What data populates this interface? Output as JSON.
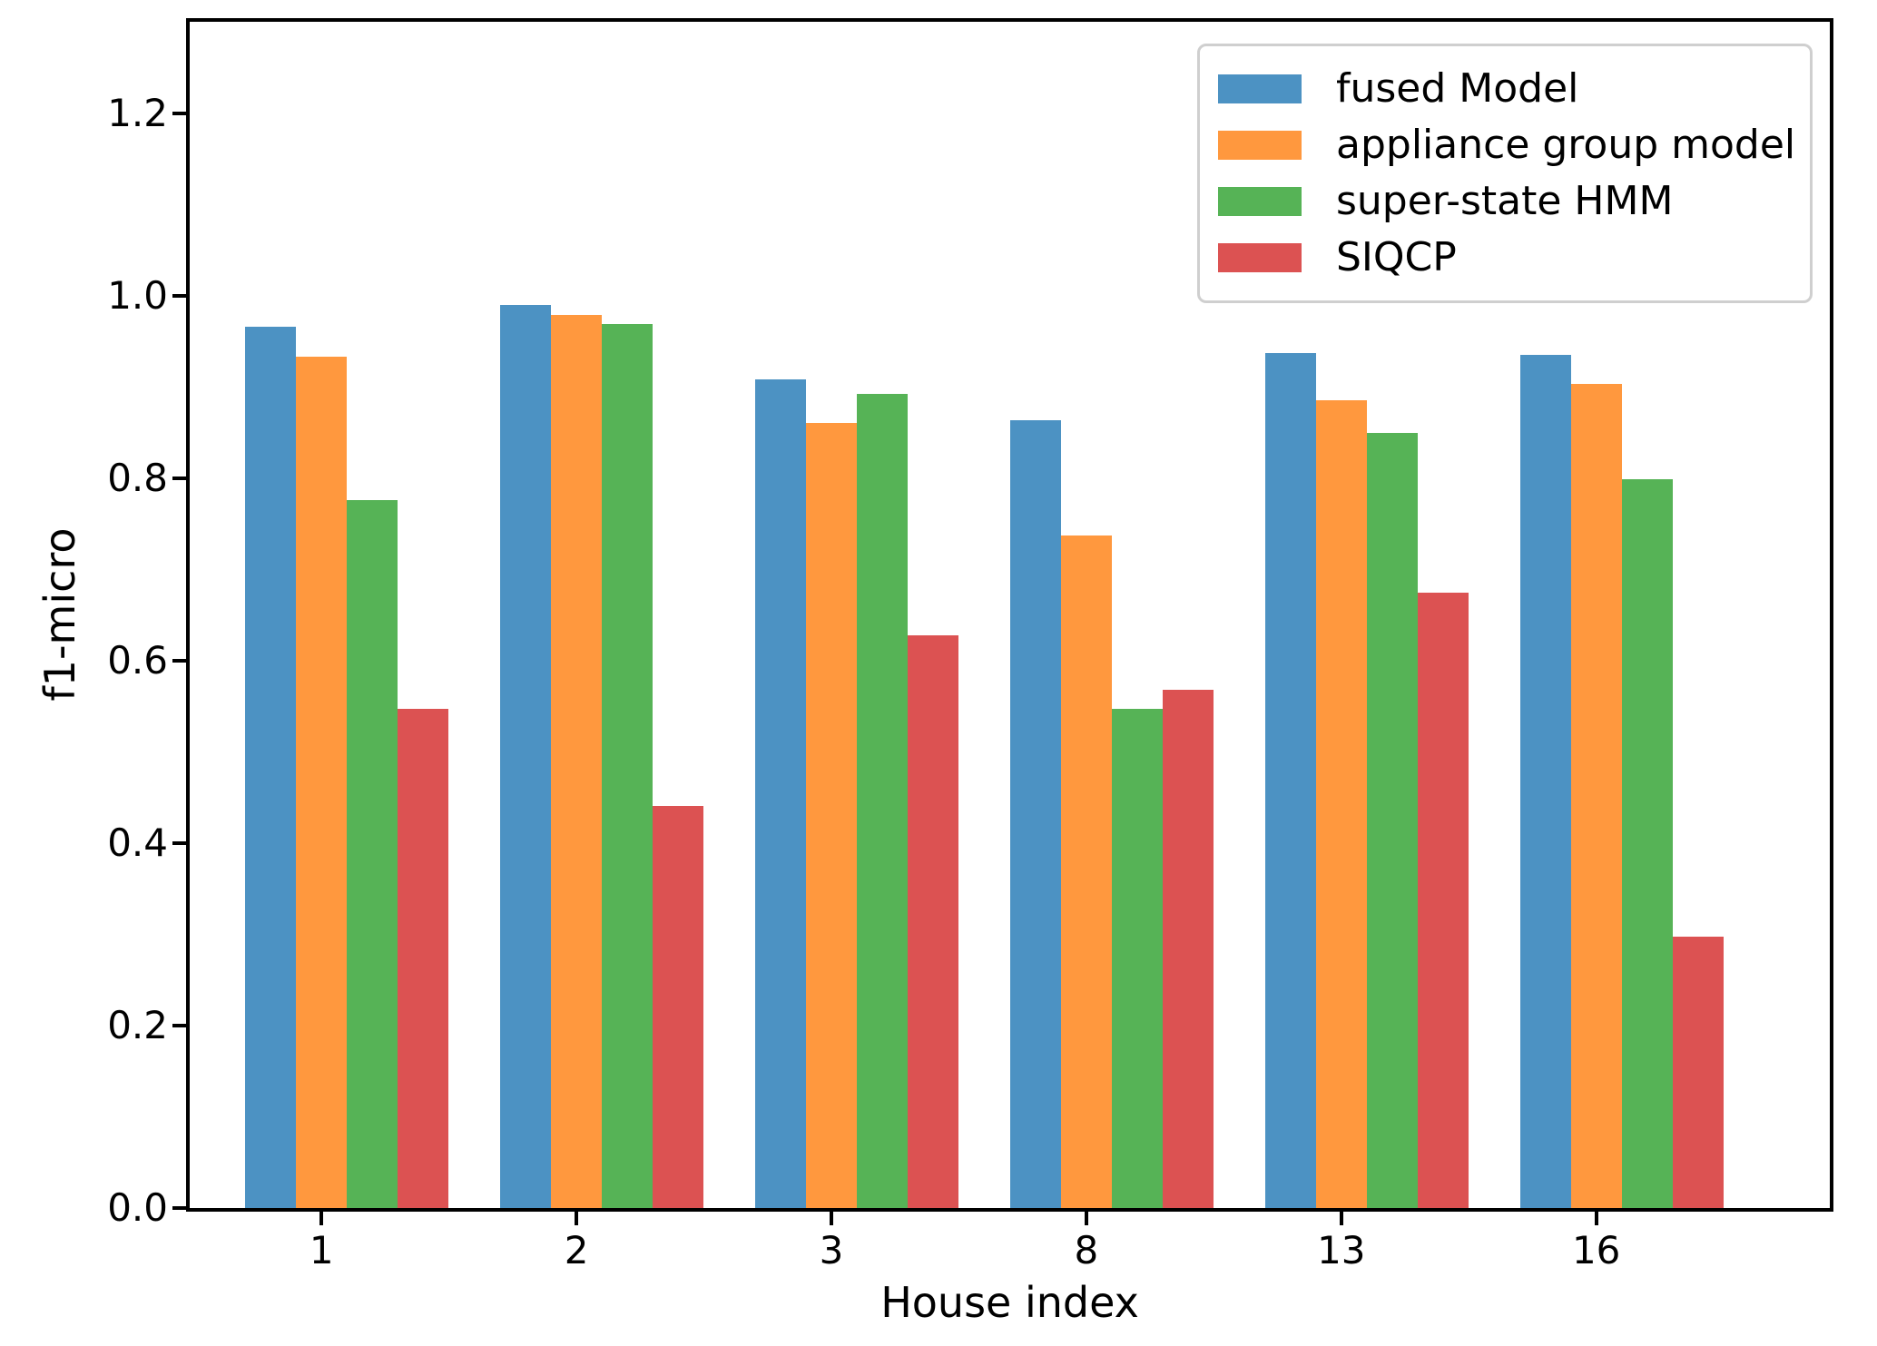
{
  "chart_data": {
    "type": "bar",
    "title": "",
    "xlabel": "House index",
    "ylabel": "f1-micro",
    "categories": [
      "1",
      "2",
      "3",
      "8",
      "13",
      "16"
    ],
    "series": [
      {
        "name": "fused Model",
        "color": "#4C92C3",
        "values": [
          0.966,
          0.99,
          0.908,
          0.863,
          0.937,
          0.935
        ]
      },
      {
        "name": "appliance group model",
        "color": "#FF983E",
        "values": [
          0.933,
          0.979,
          0.86,
          0.737,
          0.885,
          0.903
        ]
      },
      {
        "name": "super-state HMM",
        "color": "#56B356",
        "values": [
          0.776,
          0.969,
          0.892,
          0.547,
          0.849,
          0.799
        ]
      },
      {
        "name": "SIQCP",
        "color": "#DC5252",
        "values": [
          0.547,
          0.441,
          0.628,
          0.568,
          0.674,
          0.297
        ]
      }
    ],
    "yticks": [
      0.0,
      0.2,
      0.4,
      0.6,
      0.8,
      1.0,
      1.2
    ],
    "ytick_labels": [
      "0.0",
      "0.2",
      "0.4",
      "0.6",
      "0.8",
      "1.0",
      "1.2"
    ],
    "ylim": [
      0,
      1.3
    ],
    "grid": false,
    "legend_position": "upper right",
    "axis_color": "#000000",
    "legend_border_color": "#cfcfcf"
  }
}
